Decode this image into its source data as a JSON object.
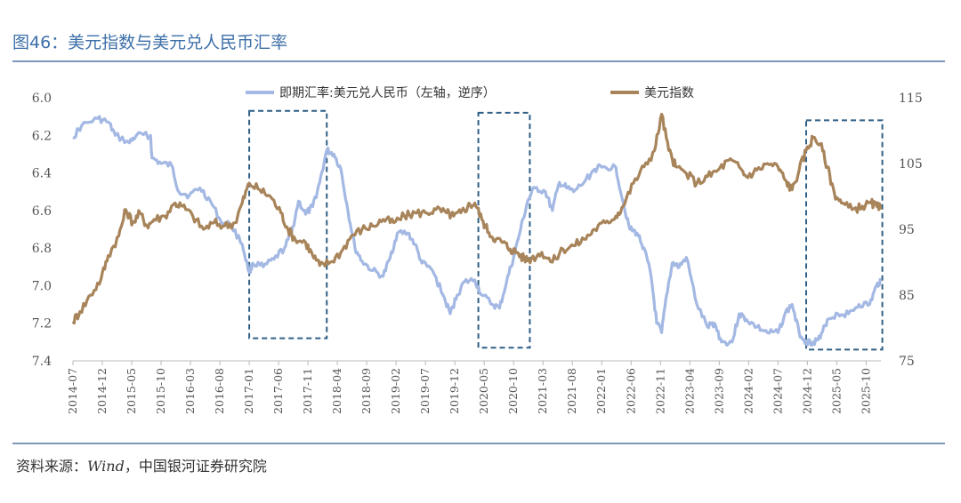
{
  "header": {
    "title": "图46：美元指数与美元兑人民币汇率"
  },
  "footer": {
    "source_prefix": "资料来源：",
    "source_en": "Wind",
    "source_suffix": "，中国银河证券研究院"
  },
  "chart_data": {
    "type": "line",
    "title": "图46：美元指数与美元兑人民币汇率",
    "left_axis": {
      "ticks": [
        "6.0",
        "6.2",
        "6.4",
        "6.6",
        "6.8",
        "7.0",
        "7.2",
        "7.4"
      ],
      "range": [
        6.0,
        7.4
      ],
      "inverted": true
    },
    "right_axis": {
      "ticks": [
        "115",
        "105",
        "95",
        "85",
        "75"
      ],
      "range": [
        75,
        115
      ]
    },
    "x_ticks": [
      "2014-07",
      "2014-12",
      "2015-05",
      "2015-10",
      "2016-03",
      "2016-08",
      "2017-01",
      "2017-06",
      "2017-11",
      "2018-04",
      "2018-09",
      "2019-02",
      "2019-07",
      "2019-12",
      "2020-05",
      "2020-10",
      "2021-03",
      "2021-08",
      "2022-01",
      "2022-06",
      "2022-11",
      "2023-04",
      "2023-09",
      "2024-02",
      "2024-07",
      "2024-12",
      "2025-05",
      "2025-10"
    ],
    "x_start": 2014.5,
    "x_end": 2025.96,
    "series": [
      {
        "name": "即期汇率:美元兑人民币（左轴，逆序）",
        "axis": "left",
        "color": "#a3b8e3",
        "points": [
          [
            2014.5,
            6.21
          ],
          [
            2014.62,
            6.15
          ],
          [
            2014.85,
            6.11
          ],
          [
            2015.0,
            6.13
          ],
          [
            2015.1,
            6.2
          ],
          [
            2015.3,
            6.24
          ],
          [
            2015.4,
            6.2
          ],
          [
            2015.6,
            6.2
          ],
          [
            2015.62,
            6.32
          ],
          [
            2015.75,
            6.35
          ],
          [
            2015.9,
            6.36
          ],
          [
            2016.0,
            6.5
          ],
          [
            2016.15,
            6.52
          ],
          [
            2016.3,
            6.48
          ],
          [
            2016.45,
            6.55
          ],
          [
            2016.6,
            6.66
          ],
          [
            2016.75,
            6.68
          ],
          [
            2016.9,
            6.78
          ],
          [
            2017.0,
            6.93
          ],
          [
            2017.05,
            6.88
          ],
          [
            2017.2,
            6.9
          ],
          [
            2017.35,
            6.86
          ],
          [
            2017.5,
            6.8
          ],
          [
            2017.6,
            6.72
          ],
          [
            2017.7,
            6.55
          ],
          [
            2017.8,
            6.62
          ],
          [
            2017.9,
            6.58
          ],
          [
            2018.0,
            6.45
          ],
          [
            2018.1,
            6.28
          ],
          [
            2018.2,
            6.3
          ],
          [
            2018.3,
            6.38
          ],
          [
            2018.4,
            6.6
          ],
          [
            2018.5,
            6.8
          ],
          [
            2018.6,
            6.87
          ],
          [
            2018.75,
            6.92
          ],
          [
            2018.9,
            6.95
          ],
          [
            2019.0,
            6.85
          ],
          [
            2019.1,
            6.72
          ],
          [
            2019.25,
            6.72
          ],
          [
            2019.35,
            6.78
          ],
          [
            2019.45,
            6.88
          ],
          [
            2019.6,
            6.92
          ],
          [
            2019.75,
            7.05
          ],
          [
            2019.85,
            7.15
          ],
          [
            2019.95,
            7.05
          ],
          [
            2020.05,
            6.98
          ],
          [
            2020.2,
            6.97
          ],
          [
            2020.3,
            7.05
          ],
          [
            2020.45,
            7.1
          ],
          [
            2020.55,
            7.12
          ],
          [
            2020.65,
            6.98
          ],
          [
            2020.75,
            6.85
          ],
          [
            2020.85,
            6.7
          ],
          [
            2020.95,
            6.55
          ],
          [
            2021.05,
            6.48
          ],
          [
            2021.2,
            6.5
          ],
          [
            2021.3,
            6.6
          ],
          [
            2021.4,
            6.45
          ],
          [
            2021.5,
            6.48
          ],
          [
            2021.6,
            6.5
          ],
          [
            2021.75,
            6.45
          ],
          [
            2021.9,
            6.38
          ],
          [
            2022.0,
            6.37
          ],
          [
            2022.2,
            6.37
          ],
          [
            2022.3,
            6.55
          ],
          [
            2022.4,
            6.7
          ],
          [
            2022.5,
            6.72
          ],
          [
            2022.6,
            6.8
          ],
          [
            2022.7,
            6.95
          ],
          [
            2022.78,
            7.2
          ],
          [
            2022.85,
            7.25
          ],
          [
            2022.92,
            7.05
          ],
          [
            2023.0,
            6.88
          ],
          [
            2023.1,
            6.9
          ],
          [
            2023.2,
            6.85
          ],
          [
            2023.35,
            7.1
          ],
          [
            2023.5,
            7.22
          ],
          [
            2023.6,
            7.2
          ],
          [
            2023.7,
            7.3
          ],
          [
            2023.85,
            7.3
          ],
          [
            2023.95,
            7.15
          ],
          [
            2024.05,
            7.18
          ],
          [
            2024.2,
            7.22
          ],
          [
            2024.35,
            7.25
          ],
          [
            2024.5,
            7.25
          ],
          [
            2024.6,
            7.15
          ],
          [
            2024.7,
            7.1
          ],
          [
            2024.8,
            7.25
          ],
          [
            2024.9,
            7.3
          ],
          [
            2025.0,
            7.3
          ],
          [
            2025.1,
            7.28
          ],
          [
            2025.2,
            7.18
          ],
          [
            2025.35,
            7.15
          ],
          [
            2025.5,
            7.15
          ],
          [
            2025.65,
            7.1
          ],
          [
            2025.8,
            7.1
          ],
          [
            2025.9,
            7.0
          ],
          [
            2025.96,
            6.97
          ]
        ]
      },
      {
        "name": "美元指数",
        "axis": "right",
        "color": "#a8845a",
        "points": [
          [
            2014.5,
            81.0
          ],
          [
            2014.6,
            82.5
          ],
          [
            2014.75,
            85.0
          ],
          [
            2014.9,
            87.5
          ],
          [
            2015.0,
            91.0
          ],
          [
            2015.15,
            94.0
          ],
          [
            2015.25,
            98.0
          ],
          [
            2015.35,
            96.0
          ],
          [
            2015.45,
            97.5
          ],
          [
            2015.55,
            95.5
          ],
          [
            2015.65,
            96.5
          ],
          [
            2015.8,
            97.0
          ],
          [
            2015.95,
            99.0
          ],
          [
            2016.05,
            98.5
          ],
          [
            2016.2,
            97.0
          ],
          [
            2016.35,
            95.0
          ],
          [
            2016.5,
            96.0
          ],
          [
            2016.65,
            95.5
          ],
          [
            2016.8,
            96.0
          ],
          [
            2016.9,
            99.0
          ],
          [
            2017.0,
            102.0
          ],
          [
            2017.15,
            101.0
          ],
          [
            2017.3,
            100.0
          ],
          [
            2017.45,
            97.5
          ],
          [
            2017.55,
            95.0
          ],
          [
            2017.65,
            93.5
          ],
          [
            2017.8,
            93.0
          ],
          [
            2017.9,
            91.0
          ],
          [
            2018.0,
            89.5
          ],
          [
            2018.15,
            90.0
          ],
          [
            2018.3,
            91.5
          ],
          [
            2018.45,
            94.0
          ],
          [
            2018.6,
            95.0
          ],
          [
            2018.75,
            95.5
          ],
          [
            2018.9,
            96.5
          ],
          [
            2019.05,
            96.0
          ],
          [
            2019.2,
            97.0
          ],
          [
            2019.35,
            97.5
          ],
          [
            2019.5,
            97.5
          ],
          [
            2019.65,
            98.0
          ],
          [
            2019.8,
            97.5
          ],
          [
            2019.9,
            97.0
          ],
          [
            2020.0,
            97.5
          ],
          [
            2020.1,
            98.5
          ],
          [
            2020.2,
            99.0
          ],
          [
            2020.3,
            96.5
          ],
          [
            2020.4,
            94.5
          ],
          [
            2020.5,
            93.5
          ],
          [
            2020.6,
            93.0
          ],
          [
            2020.7,
            92.0
          ],
          [
            2020.8,
            91.5
          ],
          [
            2020.9,
            90.5
          ],
          [
            2021.0,
            90.5
          ],
          [
            2021.15,
            91.5
          ],
          [
            2021.3,
            90.0
          ],
          [
            2021.45,
            92.0
          ],
          [
            2021.6,
            92.5
          ],
          [
            2021.75,
            93.5
          ],
          [
            2021.9,
            95.0
          ],
          [
            2022.05,
            96.0
          ],
          [
            2022.2,
            97.0
          ],
          [
            2022.3,
            98.5
          ],
          [
            2022.45,
            102.0
          ],
          [
            2022.6,
            104.5
          ],
          [
            2022.75,
            107.0
          ],
          [
            2022.85,
            112.5
          ],
          [
            2022.95,
            107.0
          ],
          [
            2023.05,
            104.5
          ],
          [
            2023.2,
            103.5
          ],
          [
            2023.35,
            102.0
          ],
          [
            2023.5,
            103.0
          ],
          [
            2023.65,
            104.0
          ],
          [
            2023.8,
            105.5
          ],
          [
            2023.95,
            104.5
          ],
          [
            2024.05,
            103.0
          ],
          [
            2024.2,
            104.0
          ],
          [
            2024.35,
            105.0
          ],
          [
            2024.5,
            104.5
          ],
          [
            2024.6,
            102.5
          ],
          [
            2024.7,
            101.0
          ],
          [
            2024.8,
            104.0
          ],
          [
            2024.9,
            107.0
          ],
          [
            2025.0,
            109.0
          ],
          [
            2025.1,
            108.0
          ],
          [
            2025.2,
            104.5
          ],
          [
            2025.3,
            100.5
          ],
          [
            2025.4,
            99.0
          ],
          [
            2025.55,
            98.0
          ],
          [
            2025.7,
            98.5
          ],
          [
            2025.82,
            99.0
          ],
          [
            2025.9,
            98.5
          ],
          [
            2025.96,
            98.0
          ]
        ]
      }
    ],
    "highlight_boxes": [
      {
        "x_from": 2017.0,
        "x_to": 2018.1,
        "y_from": 6.07,
        "y_to": 7.28
      },
      {
        "x_from": 2020.25,
        "x_to": 2020.98,
        "y_from": 6.08,
        "y_to": 7.33
      },
      {
        "x_from": 2024.9,
        "x_to": 2025.98,
        "y_from": 6.12,
        "y_to": 7.34
      }
    ]
  }
}
